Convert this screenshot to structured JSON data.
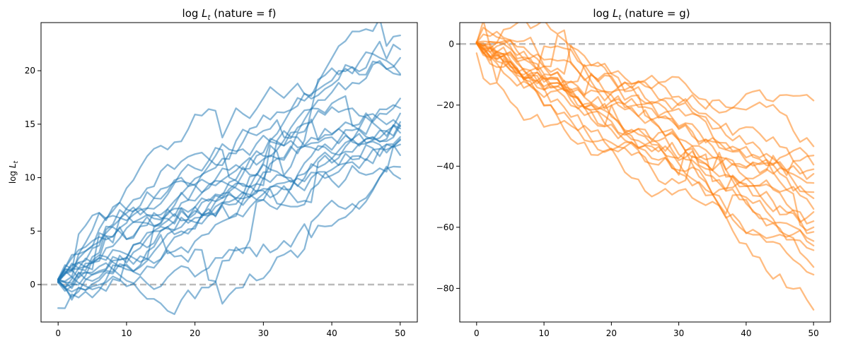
{
  "chart_data": [
    {
      "type": "line",
      "title_prefix": "log ",
      "title_var": "L",
      "title_sub": "t",
      "title_suffix": " (nature = f)",
      "ylabel_prefix": "log ",
      "ylabel_var": "L",
      "ylabel_sub": "t",
      "color": "#1f77b4",
      "xlim": [
        -2.5,
        52.5
      ],
      "ylim": [
        -3.5,
        24.5
      ],
      "xticks": [
        0,
        10,
        20,
        30,
        40,
        50
      ],
      "yticks": [
        0,
        5,
        10,
        15,
        20
      ],
      "reference_line_y": 0,
      "n_steps": 50,
      "series": [
        {
          "start": 0.4,
          "end": 23.3
        },
        {
          "start": 0.3,
          "end": 21.2
        },
        {
          "start": 0.5,
          "end": 22.0
        },
        {
          "start": 0.2,
          "end": 19.6
        },
        {
          "start": 0.4,
          "end": 19.7
        },
        {
          "start": 0.3,
          "end": 17.4
        },
        {
          "start": 0.5,
          "end": 16.5
        },
        {
          "start": 0.4,
          "end": 16.0
        },
        {
          "start": 0.3,
          "end": 14.9
        },
        {
          "start": 0.5,
          "end": 14.6
        },
        {
          "start": 0.2,
          "end": 13.8
        },
        {
          "start": 0.4,
          "end": 13.5
        },
        {
          "start": 0.3,
          "end": 13.1
        },
        {
          "start": 0.4,
          "end": 12.1
        },
        {
          "start": 0.2,
          "end": 11.0
        },
        {
          "start": 0.3,
          "end": 9.9
        },
        {
          "start": 0.5,
          "end": 14.8
        },
        {
          "start": 0.4,
          "end": 15.2
        },
        {
          "start": -2.2,
          "end": 13.6
        },
        {
          "start": 0.3,
          "end": 14.2
        }
      ]
    },
    {
      "type": "line",
      "title_prefix": "log ",
      "title_var": "L",
      "title_sub": "t",
      "title_suffix": " (nature = g)",
      "color": "#ff7f0e",
      "xlim": [
        -2.5,
        52.5
      ],
      "ylim": [
        -91,
        7
      ],
      "xticks": [
        0,
        10,
        20,
        30,
        40,
        50
      ],
      "yticks": [
        -80,
        -60,
        -40,
        -20,
        0
      ],
      "reference_line_y": 0,
      "n_steps": 50,
      "series": [
        {
          "start": 0.5,
          "end": -18.5
        },
        {
          "start": 0.3,
          "end": -33.5
        },
        {
          "start": 0.6,
          "end": -36.5
        },
        {
          "start": 0.2,
          "end": -39.5
        },
        {
          "start": 0.4,
          "end": -41.0
        },
        {
          "start": 0.5,
          "end": -45.5
        },
        {
          "start": 0.3,
          "end": -48.5
        },
        {
          "start": 0.1,
          "end": -50.5
        },
        {
          "start": 0.4,
          "end": -55.0
        },
        {
          "start": 0.6,
          "end": -60.0
        },
        {
          "start": 0.2,
          "end": -61.5
        },
        {
          "start": 0.5,
          "end": -64.5
        },
        {
          "start": 0.3,
          "end": -66.0
        },
        {
          "start": 0.4,
          "end": -67.5
        },
        {
          "start": 0.2,
          "end": -73.0
        },
        {
          "start": 0.5,
          "end": -75.5
        },
        {
          "start": 0.3,
          "end": -87.0
        },
        {
          "start": 0.4,
          "end": -42.5
        },
        {
          "start": 0.6,
          "end": -54.0
        },
        {
          "start": -3.0,
          "end": -58.0
        }
      ]
    }
  ]
}
